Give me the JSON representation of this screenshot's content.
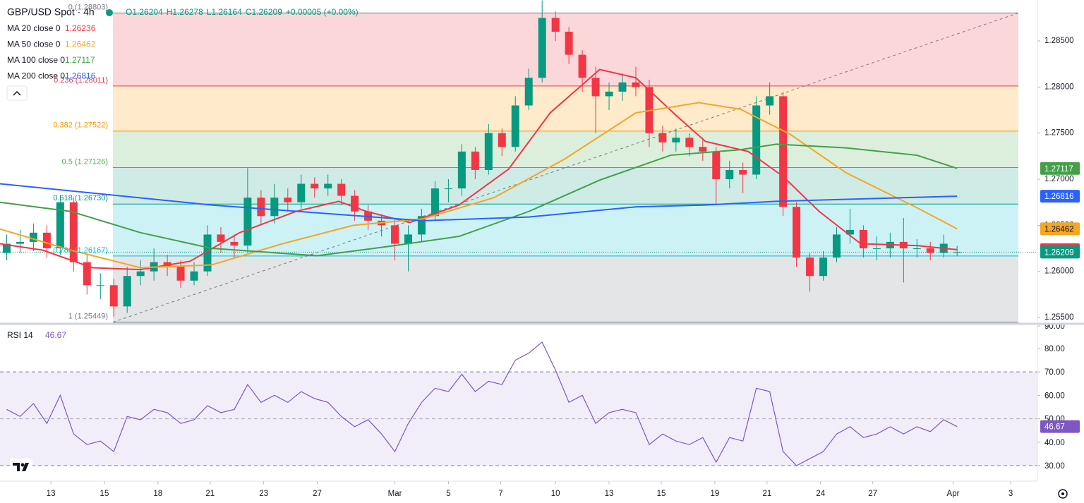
{
  "chart_data": [
    {
      "type": "candlestick",
      "title": "GBP/USD Spot · 4h",
      "ohlc_legend": [
        "O1.26204",
        "H1.26278",
        "L1.26164",
        "C1.26209",
        "+0.00005 (+0.00%)"
      ],
      "up_color": "#089981",
      "down_color": "#f23645",
      "open": [
        1.262,
        1.263,
        1.2632,
        1.2642,
        1.2625,
        1.2675,
        1.261,
        1.2585,
        1.2585,
        1.2562,
        1.2595,
        1.26,
        1.261,
        1.2605,
        1.259,
        1.26,
        1.264,
        1.2632,
        1.2628,
        1.268,
        1.266,
        1.268,
        1.2675,
        1.2695,
        1.269,
        1.2695,
        1.2682,
        1.2665,
        1.2655,
        1.265,
        1.263,
        1.264,
        1.266,
        1.269,
        1.269,
        1.273,
        1.271,
        1.275,
        1.2735,
        1.278,
        1.281,
        1.2875,
        1.286,
        1.2835,
        1.281,
        1.279,
        1.2795,
        1.2805,
        1.28,
        1.275,
        1.274,
        1.2745,
        1.2735,
        1.273,
        1.27,
        1.271,
        1.2705,
        1.278,
        1.279,
        1.267,
        1.2615,
        1.2595,
        1.2615,
        1.264,
        1.2645,
        1.2625,
        1.2625,
        1.2632,
        1.2625,
        1.2625,
        1.262,
        1.26204
      ],
      "high": [
        1.264,
        1.2645,
        1.2652,
        1.265,
        1.2683,
        1.268,
        1.2618,
        1.2598,
        1.2592,
        1.2605,
        1.2612,
        1.2625,
        1.2618,
        1.2612,
        1.261,
        1.265,
        1.2648,
        1.264,
        1.2712,
        1.2688,
        1.2695,
        1.269,
        1.2705,
        1.2702,
        1.2705,
        1.27,
        1.2688,
        1.2672,
        1.2662,
        1.2658,
        1.265,
        1.2668,
        1.2698,
        1.27,
        1.2738,
        1.2735,
        1.276,
        1.2755,
        1.279,
        1.282,
        1.2894,
        1.2882,
        1.2865,
        1.284,
        1.2822,
        1.2805,
        1.2815,
        1.2822,
        1.2808,
        1.2758,
        1.2755,
        1.275,
        1.2745,
        1.2735,
        1.272,
        1.2718,
        1.279,
        1.2805,
        1.2795,
        1.2675,
        1.262,
        1.2622,
        1.2648,
        1.2668,
        1.265,
        1.2638,
        1.2642,
        1.2658,
        1.2635,
        1.2632,
        1.264,
        1.26278
      ],
      "low": [
        1.2612,
        1.262,
        1.2622,
        1.2615,
        1.2618,
        1.26,
        1.2575,
        1.257,
        1.2551,
        1.2555,
        1.2585,
        1.259,
        1.2595,
        1.2582,
        1.2585,
        1.2595,
        1.262,
        1.2615,
        1.262,
        1.265,
        1.2652,
        1.2665,
        1.2668,
        1.268,
        1.2682,
        1.2672,
        1.2655,
        1.2645,
        1.2638,
        1.2612,
        1.26,
        1.2632,
        1.2655,
        1.2675,
        1.2682,
        1.27,
        1.2705,
        1.2725,
        1.273,
        1.2775,
        1.2805,
        1.285,
        1.2825,
        1.2795,
        1.275,
        1.2775,
        1.2785,
        1.279,
        1.2735,
        1.273,
        1.273,
        1.2725,
        1.272,
        1.2672,
        1.269,
        1.2685,
        1.27,
        1.277,
        1.266,
        1.2605,
        1.2578,
        1.259,
        1.261,
        1.263,
        1.2615,
        1.2612,
        1.2615,
        1.2588,
        1.2615,
        1.2612,
        1.2615,
        1.26164
      ],
      "close": [
        1.263,
        1.2632,
        1.2642,
        1.2625,
        1.2675,
        1.261,
        1.2585,
        1.2585,
        1.2562,
        1.2595,
        1.26,
        1.261,
        1.2605,
        1.259,
        1.26,
        1.264,
        1.2632,
        1.2628,
        1.268,
        1.266,
        1.268,
        1.2675,
        1.2695,
        1.269,
        1.2695,
        1.2682,
        1.2665,
        1.2655,
        1.265,
        1.263,
        1.264,
        1.266,
        1.269,
        1.269,
        1.273,
        1.271,
        1.275,
        1.2735,
        1.278,
        1.281,
        1.2875,
        1.286,
        1.2835,
        1.281,
        1.279,
        1.2795,
        1.2805,
        1.28,
        1.275,
        1.274,
        1.2745,
        1.2735,
        1.273,
        1.27,
        1.271,
        1.2705,
        1.278,
        1.279,
        1.267,
        1.2615,
        1.2595,
        1.2615,
        1.264,
        1.2645,
        1.2625,
        1.2625,
        1.2632,
        1.2625,
        1.2625,
        1.262,
        1.263,
        1.26209
      ],
      "series": [
        {
          "name": "MA 20 close 0",
          "color": "#f23645",
          "x": [
            -0.5,
            2.7,
            6.4,
            10.0,
            13.7,
            17.4,
            21.6,
            24.8,
            26.9,
            30.1,
            33.8,
            37.5,
            40.6,
            44.3,
            47.0,
            50.1,
            52.2,
            55.4,
            58.0,
            60.7,
            63.8,
            68.0,
            71
          ],
          "values": [
            1.263,
            1.2623,
            1.2604,
            1.2602,
            1.2611,
            1.2642,
            1.2665,
            1.2676,
            1.2665,
            1.2653,
            1.2672,
            1.2711,
            1.2772,
            1.2819,
            1.281,
            1.2768,
            1.2741,
            1.273,
            1.2703,
            1.2665,
            1.263,
            1.2628,
            1.26236
          ]
        },
        {
          "name": "MA 50 close 0",
          "color": "#f5a623",
          "x": [
            -0.5,
            4.8,
            10.0,
            15.3,
            20.6,
            25.9,
            31.1,
            36.4,
            41.7,
            47.0,
            51.7,
            54.8,
            58.5,
            62.7,
            68.0,
            71
          ],
          "values": [
            1.2646,
            1.2623,
            1.2604,
            1.2607,
            1.263,
            1.265,
            1.2657,
            1.268,
            1.2722,
            1.2772,
            1.2783,
            1.2776,
            1.2749,
            1.2707,
            1.2669,
            1.26462
          ]
        },
        {
          "name": "MA 100 close 0",
          "color": "#43a047",
          "x": [
            -0.5,
            4.8,
            10.0,
            15.3,
            23.2,
            28.5,
            33.8,
            39.0,
            44.3,
            49.6,
            54.8,
            57.5,
            62.7,
            68.0,
            71
          ],
          "values": [
            1.2675,
            1.2665,
            1.2642,
            1.2625,
            1.2617,
            1.2627,
            1.2638,
            1.2665,
            1.2699,
            1.2726,
            1.2732,
            1.2738,
            1.2734,
            1.2726,
            1.27117
          ]
        },
        {
          "name": "MA 200 close 0",
          "color": "#2962ff",
          "x": [
            -0.5,
            15.3,
            31.1,
            39.0,
            47.0,
            52.2,
            57.5,
            71
          ],
          "values": [
            1.2695,
            1.2672,
            1.2655,
            1.2659,
            1.267,
            1.2672,
            1.2676,
            1.26816
          ]
        }
      ],
      "fib": [
        {
          "level": 0,
          "price": 1.28803,
          "label": "0 (1.28803)",
          "color": "#787b86"
        },
        {
          "level": 0.236,
          "price": 1.28011,
          "label": "0.236 (1.28011)",
          "color": "#f23645"
        },
        {
          "level": 0.382,
          "price": 1.27522,
          "label": "0.382 (1.27522)",
          "color": "#ff9800"
        },
        {
          "level": 0.5,
          "price": 1.27126,
          "label": "0.5 (1.27126)",
          "color": "#4caf50"
        },
        {
          "level": 0.618,
          "price": 1.2673,
          "label": "0.618 (1.26730)",
          "color": "#089981"
        },
        {
          "level": 0.786,
          "price": 1.26167,
          "label": "0.786 (1.26167)",
          "color": "#00bcd4"
        },
        {
          "level": 1,
          "price": 1.25449,
          "label": "1 (1.25449)",
          "color": "#787b86"
        }
      ],
      "xlim": [
        -0.5,
        77
      ],
      "xticks": [
        {
          "value": 3.3,
          "label": "13"
        },
        {
          "value": 7.3,
          "label": "15"
        },
        {
          "value": 11.3,
          "label": "18"
        },
        {
          "value": 15.2,
          "label": "21"
        },
        {
          "value": 19.2,
          "label": "23"
        },
        {
          "value": 23.2,
          "label": "27"
        },
        {
          "value": 29.0,
          "label": "Mar"
        },
        {
          "value": 33.0,
          "label": "5"
        },
        {
          "value": 36.9,
          "label": "7"
        },
        {
          "value": 41.0,
          "label": "10"
        },
        {
          "value": 45.0,
          "label": "13"
        },
        {
          "value": 48.9,
          "label": "15"
        },
        {
          "value": 52.9,
          "label": "19"
        },
        {
          "value": 56.8,
          "label": "21"
        },
        {
          "value": 60.8,
          "label": "24"
        },
        {
          "value": 64.7,
          "label": "27"
        },
        {
          "value": 70.7,
          "label": "Apr"
        },
        {
          "value": 75.0,
          "label": "3"
        }
      ],
      "ylim": [
        1.25439,
        1.28944
      ],
      "yticks": [
        {
          "value": 1.255,
          "label": "1.25500"
        },
        {
          "value": 1.26,
          "label": "1.26000"
        },
        {
          "value": 1.265,
          "label": "1.26500"
        },
        {
          "value": 1.27,
          "label": "1.27000"
        },
        {
          "value": 1.275,
          "label": "1.27500"
        },
        {
          "value": 1.28,
          "label": "1.28000"
        },
        {
          "value": 1.285,
          "label": "1.28500"
        }
      ]
    },
    {
      "type": "line",
      "series": [
        {
          "name": "RSI 14",
          "color": "#7e57c2",
          "values": [
            54,
            51,
            56.5,
            48,
            60,
            43.5,
            39,
            40.5,
            36,
            51,
            49.6,
            54,
            52.6,
            48,
            49.6,
            55.6,
            52.6,
            54,
            64.6,
            57,
            60,
            57,
            61.6,
            58.6,
            57,
            51,
            46.6,
            49.6,
            43.5,
            36,
            48,
            57,
            63,
            61.6,
            69,
            61.6,
            66,
            64.6,
            75,
            78,
            82.7,
            70.7,
            57,
            60,
            48,
            52.6,
            54,
            52.6,
            39,
            43.5,
            40.5,
            39,
            42,
            31.5,
            42,
            40.5,
            63,
            61.6,
            36,
            30,
            33,
            36,
            43.5,
            46.6,
            42,
            43.5,
            46.6,
            43.5,
            46.6,
            44.5,
            49.6,
            46.67
          ]
        }
      ],
      "band": [
        30,
        70
      ],
      "mid": 50,
      "xlim": [
        -0.5,
        77
      ],
      "ylim": [
        24,
        90.2
      ],
      "yticks": [
        {
          "value": 30,
          "label": "30.00"
        },
        {
          "value": 40,
          "label": "40.00"
        },
        {
          "value": 50,
          "label": "50.00"
        },
        {
          "value": 60,
          "label": "60.00"
        },
        {
          "value": 70,
          "label": "70.00"
        },
        {
          "value": 80,
          "label": "80.00"
        },
        {
          "value": 90,
          "label": "90.00"
        }
      ]
    }
  ]
}
